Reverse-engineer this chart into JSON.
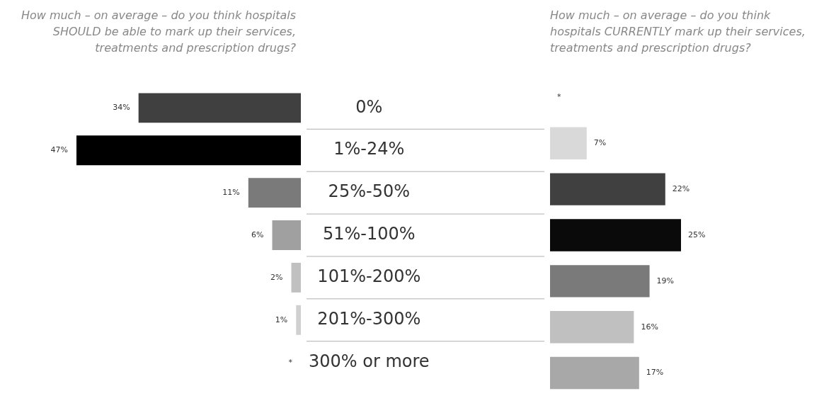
{
  "chart_data": [
    {
      "type": "bar",
      "orientation": "horizontal",
      "title": "How much – on average – do you think hospitals SHOULD be able to mark up their services, treatments and prescription drugs?",
      "categories": [
        "0%",
        "1%-24%",
        "25%-50%",
        "51%-100%",
        "101%-200%",
        "201%-300%",
        "300% or more"
      ],
      "values": [
        34,
        47,
        11,
        6,
        2,
        1,
        null
      ],
      "value_labels": [
        "34%",
        "47%",
        "11%",
        "6%",
        "2%",
        "1%",
        "*"
      ],
      "colors": [
        "#404040",
        "#000000",
        "#7a7a7a",
        "#a0a0a0",
        "#c0c0c0",
        "#d0d0d0",
        "#c0c0c0"
      ],
      "xlim": [
        47,
        0
      ],
      "tick_labels": "y"
    },
    {
      "type": "bar",
      "orientation": "horizontal",
      "title": "How much – on average – do you think hospitals CURRENTLY mark up their services, treatments and prescription drugs?",
      "values": [
        null,
        7,
        22,
        25,
        19,
        16,
        17
      ],
      "value_labels": [
        "*",
        "7%",
        "22%",
        "25%",
        "19%",
        "16%",
        "17%"
      ],
      "colors": [
        "#c8c8c8",
        "#d9d9d9",
        "#404040",
        "#0a0a0a",
        "#7a7a7a",
        "#c0c0c0",
        "#a8a8a8"
      ],
      "xlim": [
        0,
        25
      ],
      "tick_labels": false
    }
  ]
}
